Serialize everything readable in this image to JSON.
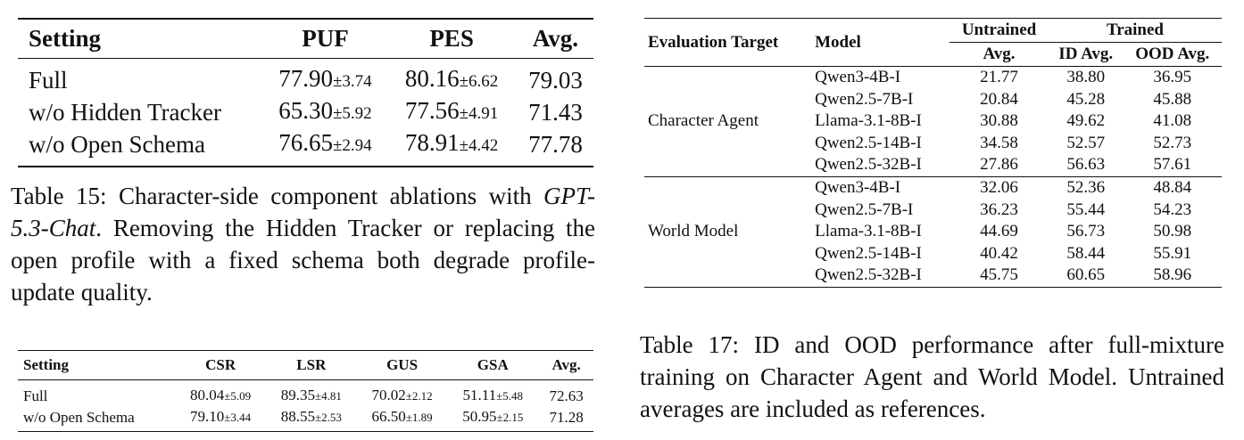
{
  "table15": {
    "headers": [
      "Setting",
      "PUF",
      "PES",
      "Avg."
    ],
    "rows": [
      {
        "setting": "Full",
        "puf": "77.90",
        "puf_pm": "±3.74",
        "pes": "80.16",
        "pes_pm": "±6.62",
        "avg": "79.03"
      },
      {
        "setting": "w/o Hidden Tracker",
        "puf": "65.30",
        "puf_pm": "±5.92",
        "pes": "77.56",
        "pes_pm": "±4.91",
        "avg": "71.43"
      },
      {
        "setting": "w/o Open Schema",
        "puf": "76.65",
        "puf_pm": "±2.94",
        "pes": "78.91",
        "pes_pm": "±4.42",
        "avg": "77.78"
      }
    ],
    "caption": {
      "label": "Table 15:",
      "pre": " Character-side component ablations with ",
      "model": "GPT-5.3-Chat",
      "post": ". Removing the Hidden Tracker or replacing the open profile with a fixed schema both degrade profile-update quality."
    }
  },
  "table16": {
    "headers": [
      "Setting",
      "CSR",
      "LSR",
      "GUS",
      "GSA",
      "Avg."
    ],
    "rows": [
      {
        "setting": "Full",
        "csr": "80.04",
        "csr_pm": "±5.09",
        "lsr": "89.35",
        "lsr_pm": "±4.81",
        "gus": "70.02",
        "gus_pm": "±2.12",
        "gsa": "51.11",
        "gsa_pm": "±5.48",
        "avg": "72.63"
      },
      {
        "setting": "w/o Open Schema",
        "csr": "79.10",
        "csr_pm": "±3.44",
        "lsr": "88.55",
        "lsr_pm": "±2.53",
        "gus": "66.50",
        "gus_pm": "±1.89",
        "gsa": "50.95",
        "gsa_pm": "±2.15",
        "avg": "71.28"
      }
    ]
  },
  "table17": {
    "headers": {
      "target": "Evaluation Target",
      "model": "Model",
      "untrained": "Untrained",
      "trained": "Trained",
      "untrained_avg": "Avg.",
      "id_avg": "ID Avg.",
      "ood_avg": "OOD Avg."
    },
    "groups": [
      {
        "target": "Character Agent",
        "rows": [
          {
            "model": "Qwen3-4B-I",
            "untrained": "21.77",
            "id": "38.80",
            "ood": "36.95"
          },
          {
            "model": "Qwen2.5-7B-I",
            "untrained": "20.84",
            "id": "45.28",
            "ood": "45.88"
          },
          {
            "model": "Llama-3.1-8B-I",
            "untrained": "30.88",
            "id": "49.62",
            "ood": "41.08"
          },
          {
            "model": "Qwen2.5-14B-I",
            "untrained": "34.58",
            "id": "52.57",
            "ood": "52.73"
          },
          {
            "model": "Qwen2.5-32B-I",
            "untrained": "27.86",
            "id": "56.63",
            "ood": "57.61"
          }
        ]
      },
      {
        "target": "World Model",
        "rows": [
          {
            "model": "Qwen3-4B-I",
            "untrained": "32.06",
            "id": "52.36",
            "ood": "48.84"
          },
          {
            "model": "Qwen2.5-7B-I",
            "untrained": "36.23",
            "id": "55.44",
            "ood": "54.23"
          },
          {
            "model": "Llama-3.1-8B-I",
            "untrained": "44.69",
            "id": "56.73",
            "ood": "50.98"
          },
          {
            "model": "Qwen2.5-14B-I",
            "untrained": "40.42",
            "id": "58.44",
            "ood": "55.91"
          },
          {
            "model": "Qwen2.5-32B-I",
            "untrained": "45.75",
            "id": "60.65",
            "ood": "58.96"
          }
        ]
      }
    ],
    "caption": {
      "label": "Table 17:",
      "text": " ID and OOD performance after full-mixture training on Character Agent and World Model. Untrained averages are included as references."
    }
  }
}
